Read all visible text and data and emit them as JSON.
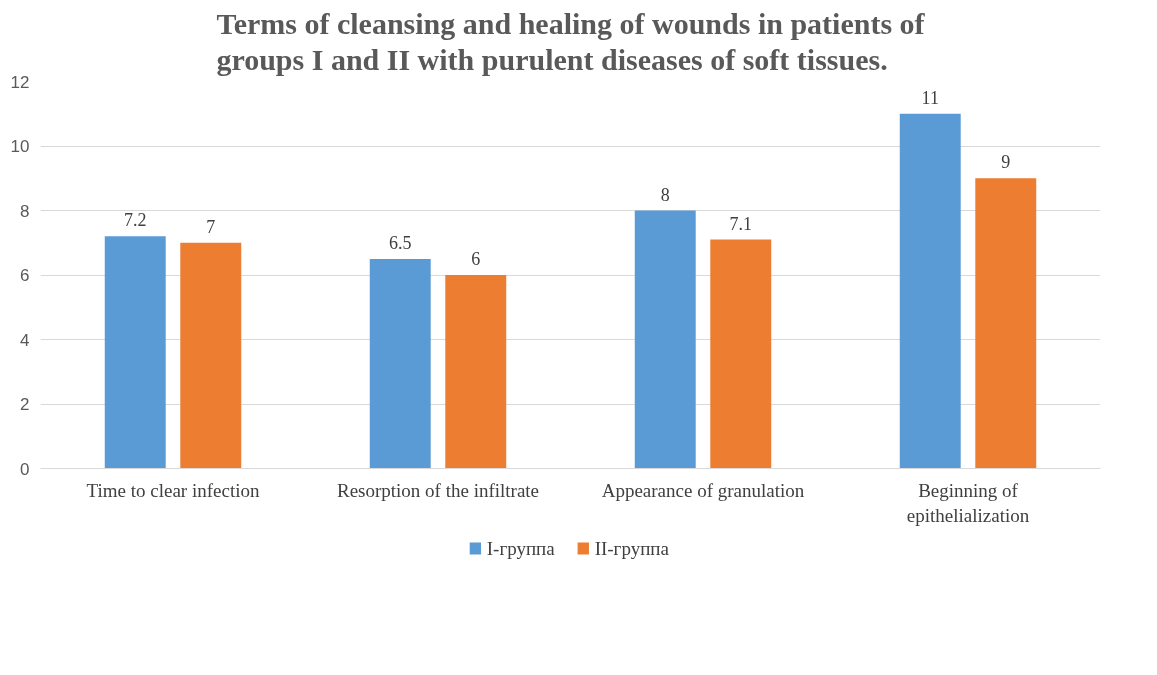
{
  "chart_data": {
    "type": "bar",
    "title": "Terms of cleansing and healing of wounds in patients of groups I and II with purulent diseases of soft tissues.",
    "categories": [
      "Time to clear infection",
      "Resorption of the infiltrate",
      "Appearance of granulation",
      "Beginning of epithelialization"
    ],
    "series": [
      {
        "name": "I-группа",
        "color": "#5b9bd5",
        "values": [
          7.2,
          6.5,
          8,
          11
        ]
      },
      {
        "name": "II-группа",
        "color": "#ed7d31",
        "values": [
          7,
          6,
          7.1,
          9
        ]
      }
    ],
    "ylim": [
      0,
      12
    ],
    "yticks": [
      0,
      2,
      4,
      6,
      8,
      10,
      12
    ],
    "grid": "y",
    "legend": "bottom",
    "data_labels": true
  }
}
